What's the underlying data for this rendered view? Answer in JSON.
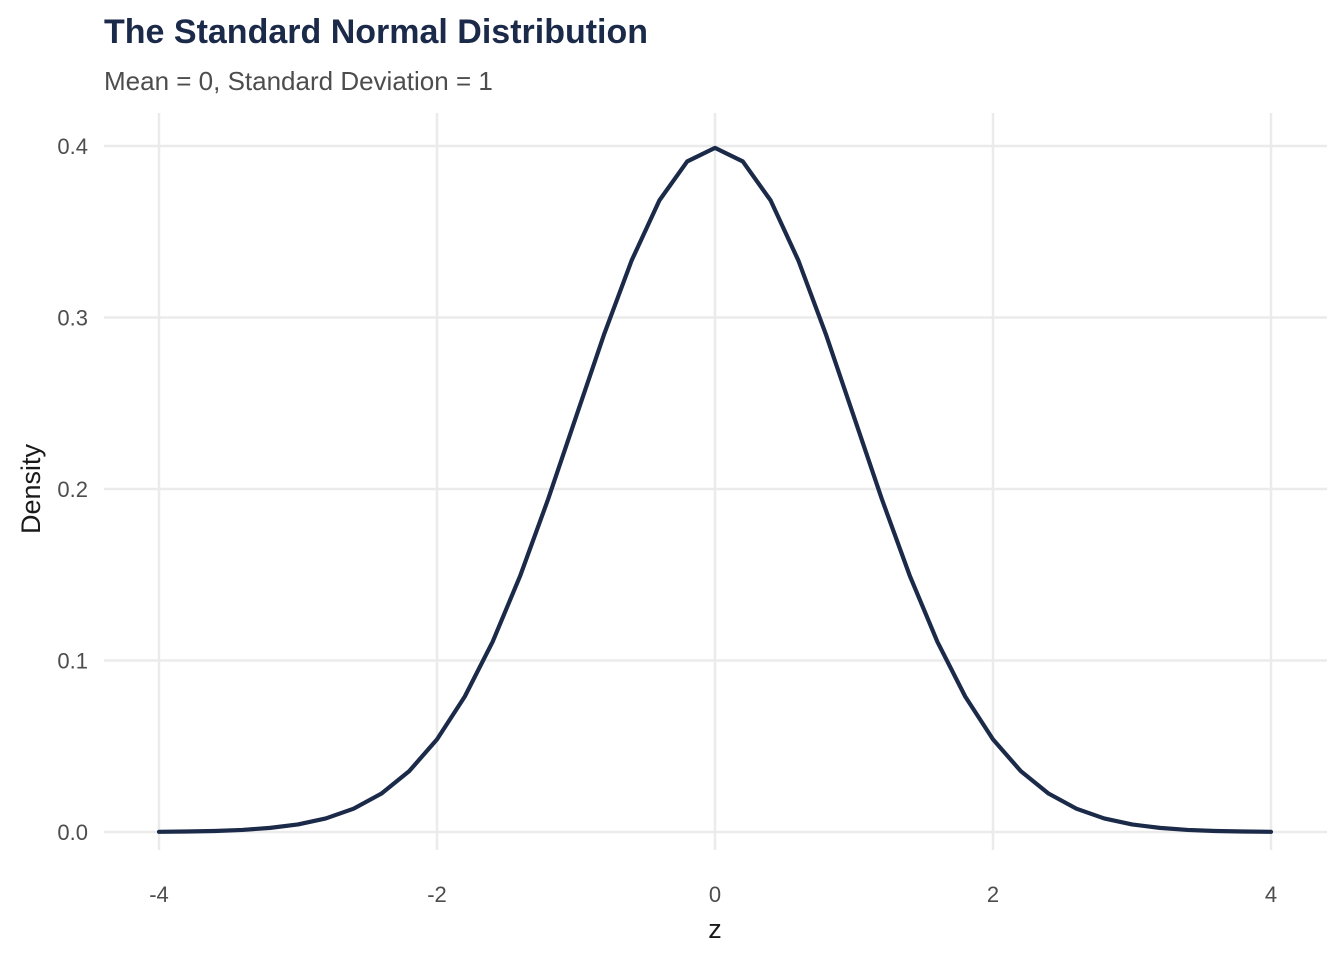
{
  "chart_data": {
    "type": "line",
    "title": "The Standard Normal Distribution",
    "subtitle": "Mean = 0, Standard Deviation = 1",
    "xlabel": "z",
    "ylabel": "Density",
    "xlim": [
      -4,
      4
    ],
    "ylim": [
      0,
      0.4
    ],
    "x_ticks": [
      -4,
      -2,
      0,
      2,
      4
    ],
    "x_tick_labels": [
      "-4",
      "-2",
      "0",
      "2",
      "4"
    ],
    "y_ticks": [
      0,
      0.1,
      0.2,
      0.3,
      0.4
    ],
    "y_tick_labels": [
      "0.0",
      "0.1",
      "0.2",
      "0.3",
      "0.4"
    ],
    "grid": true,
    "legend": "none",
    "series": [
      {
        "x": [
          -4.0,
          -3.8,
          -3.6,
          -3.4,
          -3.2,
          -3.0,
          -2.8,
          -2.6,
          -2.4,
          -2.2,
          -2.0,
          -1.8,
          -1.6,
          -1.4,
          -1.2,
          -1.0,
          -0.8,
          -0.6,
          -0.4,
          -0.2,
          0.0,
          0.2,
          0.4,
          0.6,
          0.8,
          1.0,
          1.2,
          1.4,
          1.6,
          1.8,
          2.0,
          2.2,
          2.4,
          2.6,
          2.8,
          3.0,
          3.2,
          3.4,
          3.6,
          3.8,
          4.0
        ],
        "y": [
          0.0001,
          0.0003,
          0.0006,
          0.0012,
          0.0024,
          0.0044,
          0.0079,
          0.0136,
          0.0224,
          0.0355,
          0.054,
          0.079,
          0.1109,
          0.1497,
          0.1942,
          0.242,
          0.2897,
          0.3332,
          0.3683,
          0.391,
          0.3989,
          0.391,
          0.3683,
          0.3332,
          0.2897,
          0.242,
          0.1942,
          0.1497,
          0.1109,
          0.079,
          0.054,
          0.0355,
          0.0224,
          0.0136,
          0.0079,
          0.0044,
          0.0024,
          0.0012,
          0.0006,
          0.0003,
          0.0001
        ]
      }
    ]
  },
  "colors": {
    "line": "#1c2a4a",
    "title": "#1c2a4a",
    "subtitle": "#4d4d4d",
    "tick_text": "#4d4d4d",
    "axis_text": "#1a1a1a",
    "grid": "#ebebeb"
  }
}
